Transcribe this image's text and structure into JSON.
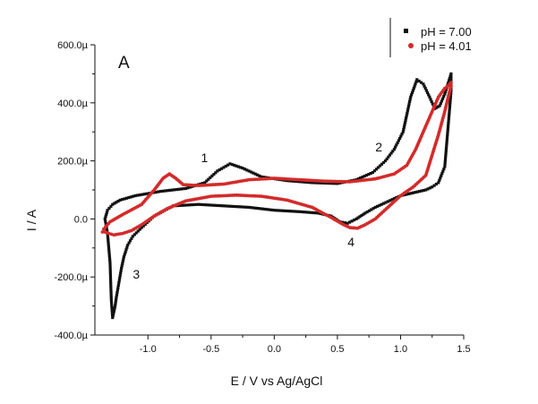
{
  "chart_data": {
    "type": "scatter",
    "panel_label": "A",
    "xlabel": "E / V vs Ag/AgCl",
    "ylabel": "I / A",
    "xlim": [
      -1.42,
      1.5
    ],
    "ylim": [
      -0.0004,
      0.0006
    ],
    "x_ticks": [
      {
        "value": -1.0,
        "label": "-1.0"
      },
      {
        "value": -0.5,
        "label": "-0.5"
      },
      {
        "value": 0.0,
        "label": "0.0"
      },
      {
        "value": 0.5,
        "label": "0.5"
      },
      {
        "value": 1.0,
        "label": "1.0"
      },
      {
        "value": 1.5,
        "label": "1.5"
      }
    ],
    "y_ticks": [
      {
        "value": -0.0004,
        "label": "-400.0µ"
      },
      {
        "value": -0.0002,
        "label": "-200.0µ"
      },
      {
        "value": 0.0,
        "label": "0.0"
      },
      {
        "value": 0.0002,
        "label": "200.0µ"
      },
      {
        "value": 0.0004,
        "label": "400.0µ"
      },
      {
        "value": 0.0006,
        "label": "600.0µ"
      }
    ],
    "legend": "top-right",
    "annotations": [
      {
        "text": "1",
        "x": -0.58,
        "y": 0.000195
      },
      {
        "text": "2",
        "x": 0.8,
        "y": 0.000232
      },
      {
        "text": "3",
        "x": -1.12,
        "y": -0.000205
      },
      {
        "text": "4",
        "x": 0.58,
        "y": -9.5e-05
      }
    ],
    "series": [
      {
        "name": "pH = 7.00",
        "color": "#111111",
        "x": [
          -1.28,
          -1.22,
          -1.1,
          -0.9,
          -0.7,
          -0.55,
          -0.45,
          -0.35,
          -0.25,
          -0.1,
          0.1,
          0.3,
          0.5,
          0.65,
          0.78,
          0.88,
          0.95,
          1.02,
          1.08,
          1.13,
          1.18,
          1.23,
          1.27,
          1.31,
          1.35,
          1.4,
          1.4,
          1.35,
          1.3,
          1.25,
          1.2,
          1.1,
          1.0,
          0.9,
          0.8,
          0.72,
          0.65,
          0.58,
          0.52,
          0.45,
          0.35,
          0.2,
          0.0,
          -0.2,
          -0.4,
          -0.6,
          -0.8,
          -0.95,
          -1.05,
          -1.12,
          -1.16,
          -1.19,
          -1.21,
          -1.23,
          -1.25,
          -1.26,
          -1.27,
          -1.28,
          -1.29,
          -1.3,
          -1.32,
          -1.34,
          -1.32,
          -1.28
        ],
        "y": [
          5e-05,
          6.5e-05,
          8e-05,
          9.5e-05,
          0.000105,
          0.000125,
          0.000165,
          0.00019,
          0.000175,
          0.000145,
          0.000132,
          0.000125,
          0.000122,
          0.000135,
          0.00016,
          0.0002,
          0.00024,
          0.0003,
          0.00042,
          0.00048,
          0.000465,
          0.00042,
          0.00038,
          0.00039,
          0.00043,
          0.0005,
          0.00044,
          0.00018,
          0.000125,
          0.00011,
          0.0001,
          9e-05,
          8e-05,
          6e-05,
          4e-05,
          2e-05,
          0.0,
          -1.5e-05,
          -1e-05,
          1e-05,
          2e-05,
          2.5e-05,
          3e-05,
          4e-05,
          4.5e-05,
          5e-05,
          4.5e-05,
          1e-05,
          -3e-05,
          -6e-05,
          -9e-05,
          -0.00013,
          -0.00017,
          -0.00022,
          -0.00027,
          -0.0003,
          -0.00032,
          -0.00034,
          -0.00028,
          -0.00015,
          -5e-05,
          0.0,
          3e-05,
          5e-05
        ]
      },
      {
        "name": "pH = 4.01",
        "color": "#d42a2a",
        "x": [
          -1.35,
          -1.3,
          -1.2,
          -1.05,
          -0.95,
          -0.88,
          -0.83,
          -0.78,
          -0.72,
          -0.6,
          -0.4,
          -0.2,
          0.0,
          0.2,
          0.4,
          0.6,
          0.8,
          0.95,
          1.05,
          1.12,
          1.18,
          1.25,
          1.3,
          1.35,
          1.38,
          1.4,
          1.4,
          1.35,
          1.3,
          1.25,
          1.2,
          1.1,
          1.0,
          0.9,
          0.8,
          0.72,
          0.66,
          0.6,
          0.55,
          0.45,
          0.3,
          0.1,
          -0.1,
          -0.3,
          -0.5,
          -0.7,
          -0.85,
          -0.95,
          -1.05,
          -1.13,
          -1.2,
          -1.27,
          -1.31,
          -1.34,
          -1.36,
          -1.35
        ],
        "y": [
          -3.5e-05,
          -1e-05,
          1.5e-05,
          5e-05,
          0.0001,
          0.00014,
          0.000155,
          0.00014,
          0.000118,
          0.000115,
          0.00012,
          0.000135,
          0.00014,
          0.000135,
          0.00013,
          0.000128,
          0.000138,
          0.000155,
          0.000185,
          0.00024,
          0.0003,
          0.00037,
          0.00042,
          0.00045,
          0.00046,
          0.00047,
          0.00046,
          0.00037,
          0.00029,
          0.00022,
          0.00015,
          0.00011,
          8e-05,
          4e-05,
          0.0,
          -2e-05,
          -3.2e-05,
          -3e-05,
          -2e-05,
          5e-06,
          4e-05,
          6.5e-05,
          7.8e-05,
          8.2e-05,
          7.8e-05,
          6.2e-05,
          3.5e-05,
          1e-05,
          -2e-05,
          -4e-05,
          -5e-05,
          -5.5e-05,
          -5e-05,
          -4.5e-05,
          -4.5e-05,
          -3.5e-05
        ]
      }
    ]
  }
}
